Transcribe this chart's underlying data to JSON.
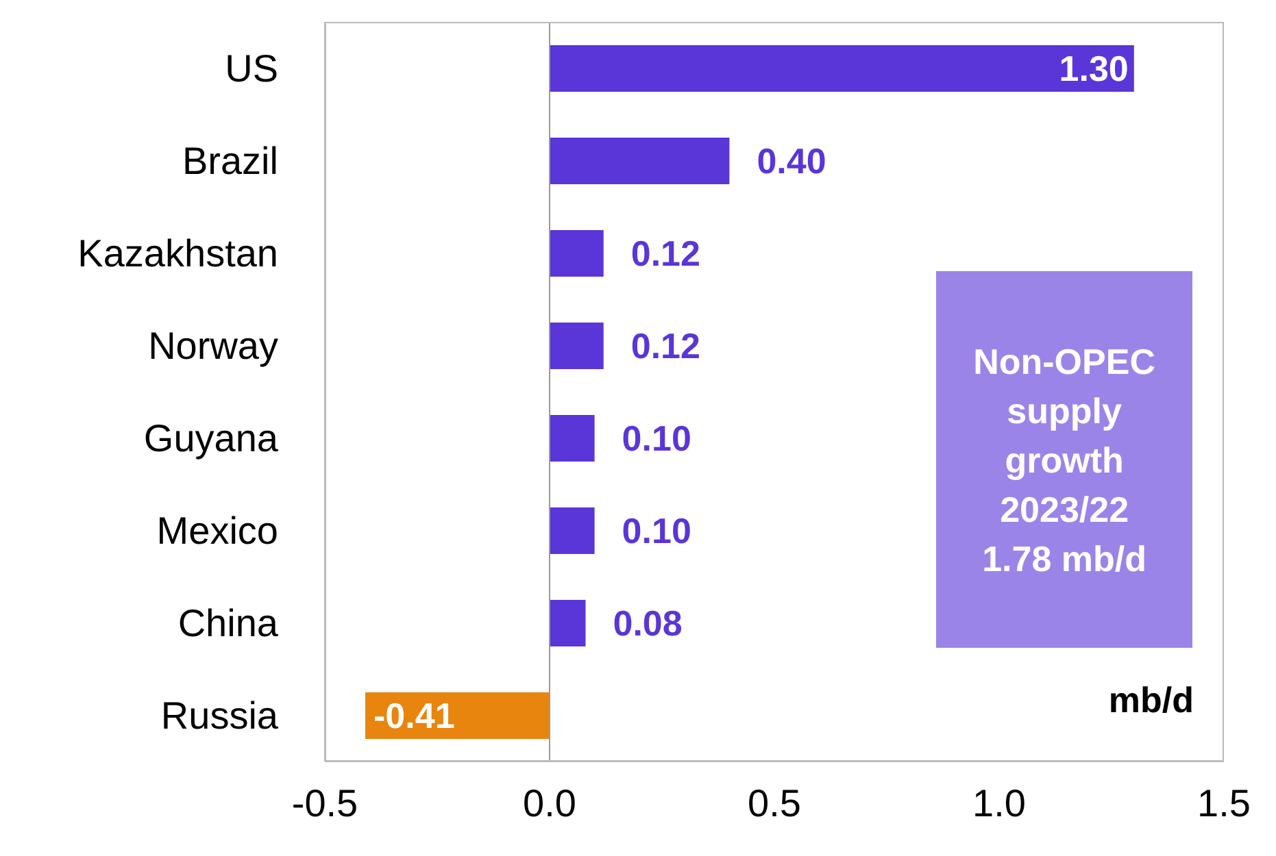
{
  "chart_data": {
    "type": "bar",
    "orientation": "horizontal",
    "categories": [
      "US",
      "Brazil",
      "Kazakhstan",
      "Norway",
      "Guyana",
      "Mexico",
      "China",
      "Russia"
    ],
    "values": [
      1.3,
      0.4,
      0.12,
      0.12,
      0.1,
      0.1,
      0.08,
      -0.41
    ],
    "colors": [
      "#5a35d8",
      "#5a35d8",
      "#5a35d8",
      "#5a35d8",
      "#5a35d8",
      "#5a35d8",
      "#5a35d8",
      "#e8850e"
    ],
    "value_labels": [
      "1.30",
      "0.40",
      "0.12",
      "0.12",
      "0.10",
      "0.10",
      "0.08",
      "-0.41"
    ],
    "xlim": [
      -0.5,
      1.5
    ],
    "xticks": [
      {
        "value": -0.5,
        "label": "-0.5"
      },
      {
        "value": 0,
        "label": "0.0"
      },
      {
        "value": 0.5,
        "label": "0.5"
      },
      {
        "value": 1,
        "label": "1.0"
      },
      {
        "value": 1.5,
        "label": "1.5"
      }
    ],
    "ref_lines": [
      {
        "axis": "x",
        "value": 0,
        "color": "#999999"
      }
    ],
    "annotations": [
      "Non-OPEC supply growth 2023/22 1.78 mb/d",
      "mb/d"
    ],
    "grid": false
  }
}
